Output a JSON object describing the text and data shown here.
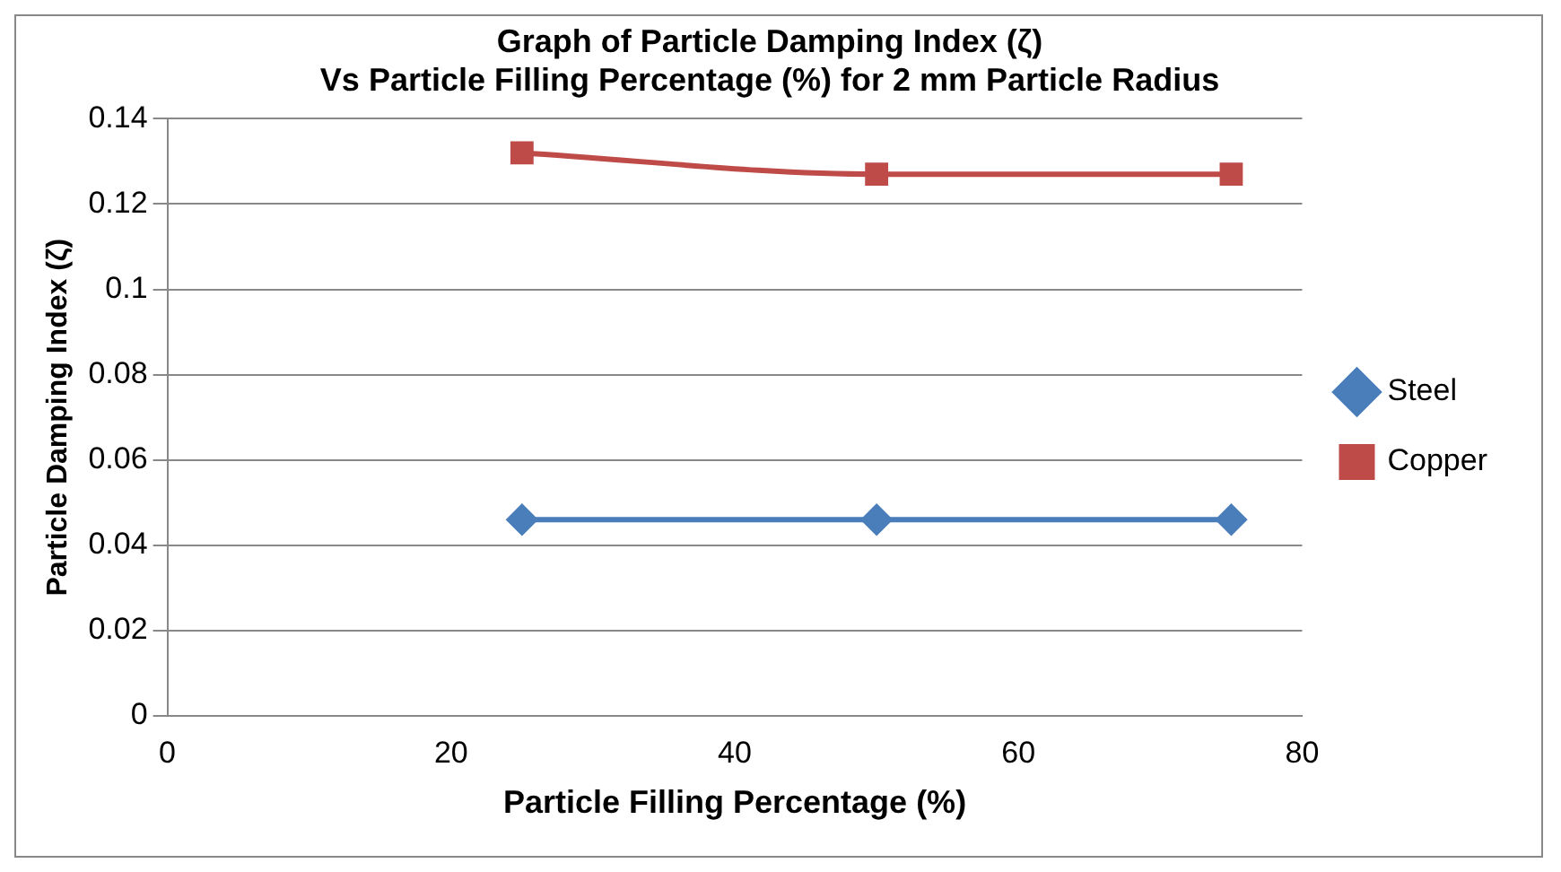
{
  "chart_data": {
    "type": "line",
    "title": [
      "Graph of Particle Damping Index (ζ)",
      "Vs Particle Filling Percentage (%) for 2 mm Particle Radius"
    ],
    "xlabel": "Particle Filling Percentage (%)",
    "ylabel": "Particle Damping Index (ζ)",
    "x": [
      25,
      50,
      75
    ],
    "series": [
      {
        "name": "Steel",
        "color": "#4a7ebb",
        "marker": "diamond",
        "values": [
          0.046,
          0.046,
          0.046
        ]
      },
      {
        "name": "Copper",
        "color": "#be4b48",
        "marker": "square",
        "values": [
          0.132,
          0.127,
          0.127
        ]
      }
    ],
    "xlim": [
      0,
      80
    ],
    "xticks": [
      0,
      20,
      40,
      60,
      80
    ],
    "ylim": [
      0,
      0.14
    ],
    "yticks": [
      0,
      0.02,
      0.04,
      0.06,
      0.08,
      0.1,
      0.12,
      0.14
    ],
    "grid": "y",
    "legend": "right"
  }
}
